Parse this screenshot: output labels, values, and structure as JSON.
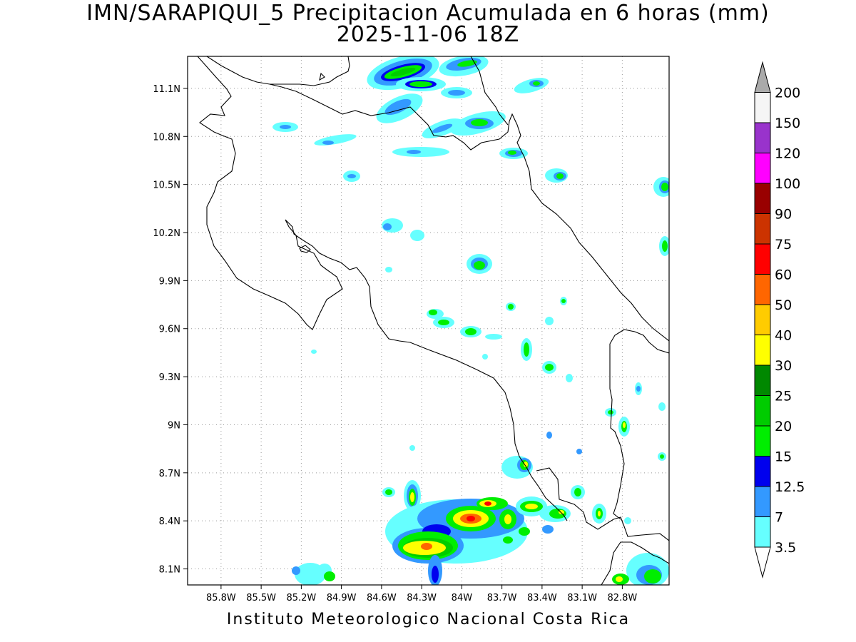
{
  "title_line1": "IMN/SARAPIQUI_5 Precipitacion Acumulada en 6 horas (mm)",
  "title_line2": "2025-11-06 18Z",
  "footer": "Instituto Meteorologico Nacional Costa Rica",
  "map": {
    "lon_range": [
      -86.05,
      -82.45
    ],
    "lat_range": [
      8.0,
      11.3
    ],
    "lon_ticks": [
      {
        "value": -85.8,
        "label": "85.8W"
      },
      {
        "value": -85.5,
        "label": "85.5W"
      },
      {
        "value": -85.2,
        "label": "85.2W"
      },
      {
        "value": -84.9,
        "label": "84.9W"
      },
      {
        "value": -84.6,
        "label": "84.6W"
      },
      {
        "value": -84.3,
        "label": "84.3W"
      },
      {
        "value": -84.0,
        "label": "84W"
      },
      {
        "value": -83.7,
        "label": "83.7W"
      },
      {
        "value": -83.4,
        "label": "83.4W"
      },
      {
        "value": -83.1,
        "label": "83.1W"
      },
      {
        "value": -82.8,
        "label": "82.8W"
      }
    ],
    "lat_ticks": [
      {
        "value": 8.1,
        "label": "8.1N"
      },
      {
        "value": 8.4,
        "label": "8.4N"
      },
      {
        "value": 8.7,
        "label": "8.7N"
      },
      {
        "value": 9.0,
        "label": "9N"
      },
      {
        "value": 9.3,
        "label": "9.3N"
      },
      {
        "value": 9.6,
        "label": "9.6N"
      },
      {
        "value": 9.9,
        "label": "9.9N"
      },
      {
        "value": 10.2,
        "label": "10.2N"
      },
      {
        "value": 10.5,
        "label": "10.5N"
      },
      {
        "value": 10.8,
        "label": "10.8N"
      },
      {
        "value": 11.1,
        "label": "11.1N"
      }
    ],
    "gridlines": "dotted"
  },
  "colorbar": {
    "labels": [
      "3.5",
      "7",
      "12.5",
      "15",
      "20",
      "25",
      "30",
      "40",
      "50",
      "60",
      "75",
      "90",
      "100",
      "120",
      "150",
      "200"
    ],
    "colors": [
      "#66ffff",
      "#3399ff",
      "#0000ee",
      "#00ee00",
      "#00cc00",
      "#008800",
      "#ffff00",
      "#ffcc00",
      "#ff6600",
      "#ff0000",
      "#cc3300",
      "#990000",
      "#ff00ff",
      "#9933cc",
      "#f5f5f5",
      "#aaaaaa"
    ]
  }
}
